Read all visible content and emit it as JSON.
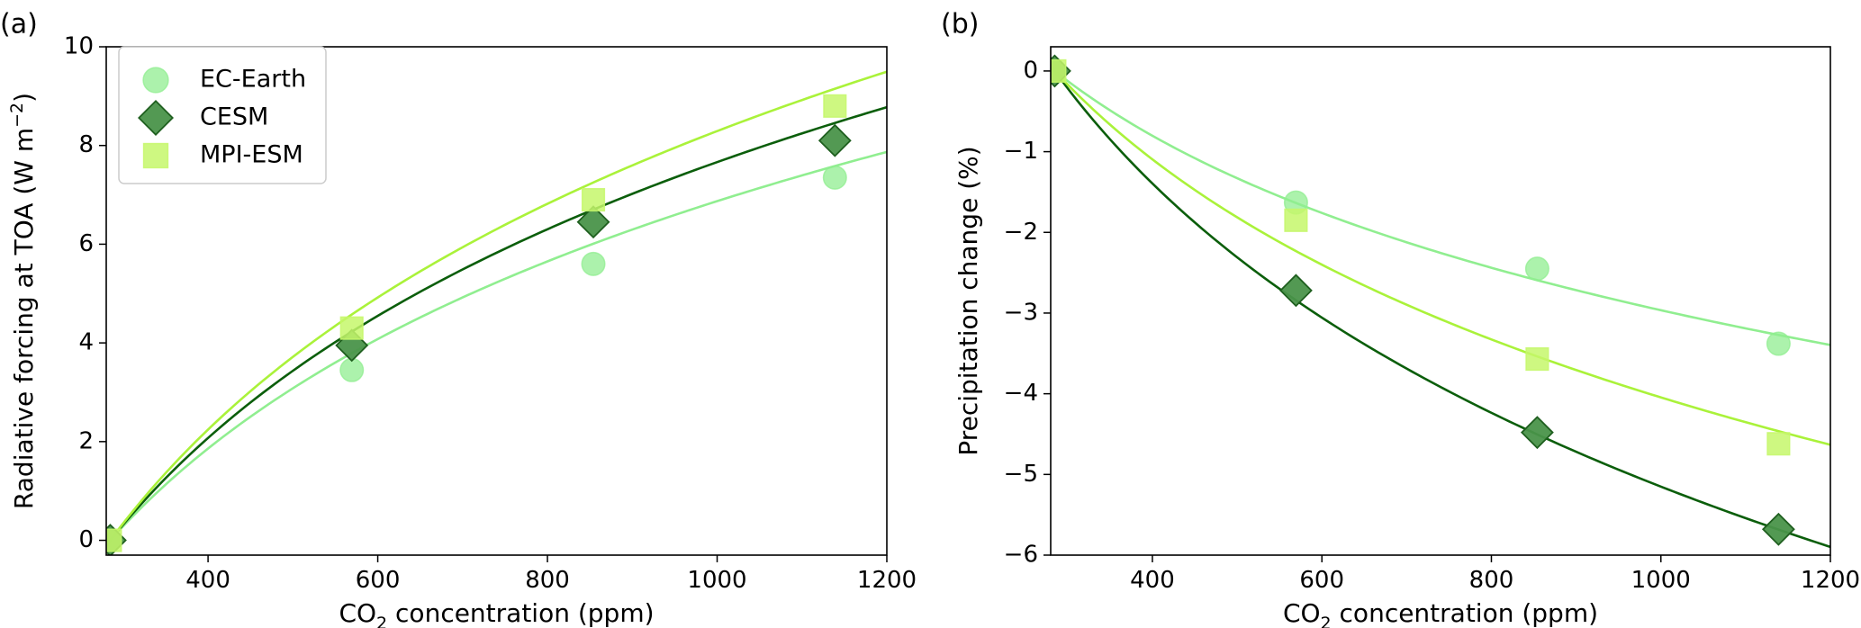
{
  "chart_data": [
    {
      "type": "scatter",
      "panel_label": "(a)",
      "xlabel": {
        "prefix": "CO",
        "sub": "2",
        "suffix": " concentration (ppm)"
      },
      "ylabel": {
        "prefix": "Radiative forcing at TOA (W m",
        "sup": "−2",
        "suffix": ")"
      },
      "xlim": [
        280,
        1200
      ],
      "ylim": [
        -0.3,
        10
      ],
      "xticks": [
        400,
        600,
        800,
        1000,
        1200
      ],
      "yticks": [
        0,
        2,
        4,
        6,
        8,
        10
      ],
      "xtick_labels": [
        "400",
        "600",
        "800",
        "1000",
        "1200"
      ],
      "ytick_labels": [
        "0",
        "2",
        "4",
        "6",
        "8",
        "10"
      ],
      "legend": {
        "placement": "upper-left",
        "entries": [
          "EC-Earth",
          "CESM",
          "MPI-ESM"
        ]
      },
      "series": [
        {
          "name": "EC-Earth",
          "marker": "circle",
          "color": "#90EE90",
          "edge": "#90EE90",
          "x": [
            284.7,
            569.4,
            854.1,
            1138.8
          ],
          "y": [
            0.0,
            3.45,
            5.6,
            7.35
          ],
          "fit": {
            "type": "log",
            "coef": 5.47
          }
        },
        {
          "name": "CESM",
          "marker": "diamond",
          "color": "#4A944A",
          "edge": "#1F5F1F",
          "x": [
            284.7,
            569.4,
            854.1,
            1138.8
          ],
          "y": [
            0.0,
            3.95,
            6.45,
            8.1
          ],
          "fit": {
            "type": "log",
            "coef": 6.1
          }
        },
        {
          "name": "MPI-ESM",
          "marker": "square",
          "color": "#C6F76B",
          "edge": "#C6F76B",
          "x": [
            284.7,
            569.4,
            854.1,
            1138.8
          ],
          "y": [
            0.0,
            4.3,
            6.9,
            8.8
          ],
          "fit": {
            "type": "log",
            "coef": 6.6
          }
        }
      ],
      "fit_colors": {
        "EC-Earth": "#90EE90",
        "CESM": "#0B5E0B",
        "MPI-ESM": "#AAF23A"
      }
    },
    {
      "type": "scatter",
      "panel_label": "(b)",
      "xlabel": {
        "prefix": "CO",
        "sub": "2",
        "suffix": " concentration (ppm)"
      },
      "ylabel": {
        "prefix": "Precipitation change (%)",
        "sup": "",
        "suffix": ""
      },
      "xlim": [
        280,
        1200
      ],
      "ylim": [
        -6,
        0.3
      ],
      "xticks": [
        400,
        600,
        800,
        1000,
        1200
      ],
      "yticks": [
        0,
        -1,
        -2,
        -3,
        -4,
        -5,
        -6
      ],
      "xtick_labels": [
        "400",
        "600",
        "800",
        "1000",
        "1200"
      ],
      "ytick_labels": [
        "0",
        "−1",
        "−2",
        "−3",
        "−4",
        "−5",
        "−6"
      ],
      "legend": null,
      "series": [
        {
          "name": "EC-Earth",
          "marker": "circle",
          "color": "#90EE90",
          "edge": "#90EE90",
          "x": [
            284.7,
            569.4,
            854.1,
            1138.8
          ],
          "y": [
            0.0,
            -1.63,
            -2.45,
            -3.38
          ],
          "fit": {
            "type": "log",
            "coef": -2.36
          }
        },
        {
          "name": "CESM",
          "marker": "diamond",
          "color": "#4A944A",
          "edge": "#1F5F1F",
          "x": [
            284.7,
            569.4,
            854.1,
            1138.8
          ],
          "y": [
            0.0,
            -2.72,
            -4.48,
            -5.68
          ],
          "fit": {
            "type": "log",
            "coef": -4.1
          }
        },
        {
          "name": "MPI-ESM",
          "marker": "square",
          "color": "#C6F76B",
          "edge": "#C6F76B",
          "x": [
            284.7,
            569.4,
            854.1,
            1138.8
          ],
          "y": [
            0.0,
            -1.85,
            -3.57,
            -4.62
          ],
          "fit": {
            "type": "log",
            "coef": -3.22
          }
        }
      ],
      "fit_colors": {
        "EC-Earth": "#90EE90",
        "CESM": "#0B5E0B",
        "MPI-ESM": "#AAF23A"
      }
    }
  ]
}
